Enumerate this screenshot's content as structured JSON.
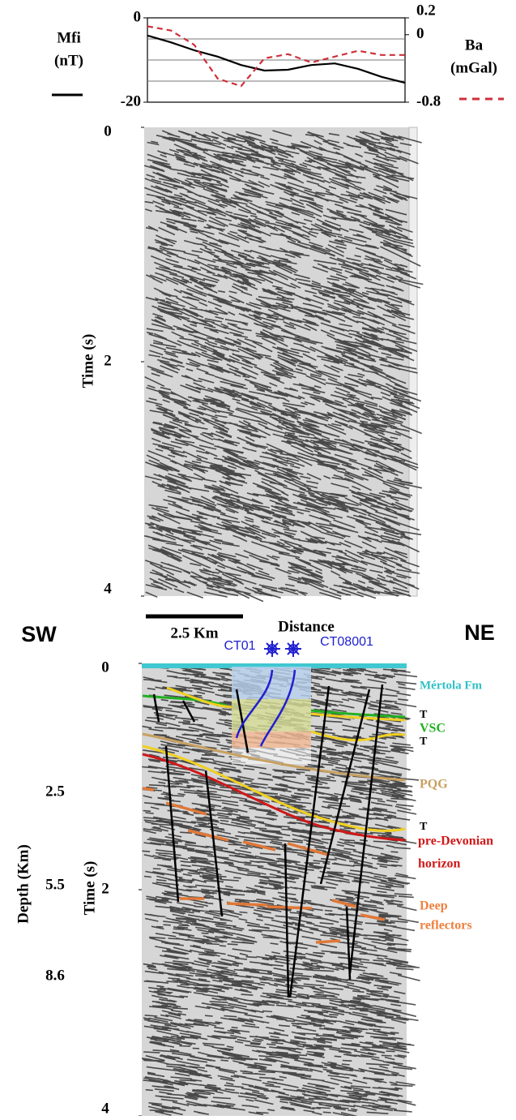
{
  "chart_data": [
    {
      "type": "line",
      "y_label": [
        "Mfi",
        "(nT)"
      ],
      "y2_label": [
        "Ba",
        "(mGal)"
      ],
      "ylim": [
        -20,
        0
      ],
      "yticks": [
        0,
        -20
      ],
      "y2lim": [
        -0.8,
        0.2
      ],
      "y2ticks": [
        0.2,
        0,
        -0.8
      ],
      "grid_lines": [
        -5,
        -10,
        -15
      ],
      "series": [
        {
          "name": "Mfi",
          "color": "#000000",
          "dash": false,
          "values": [
            -4.2,
            -5.8,
            -7.7,
            -9.2,
            -11.2,
            -12.5,
            -12.3,
            -11.2,
            -10.8,
            -12.1,
            -14.0,
            -15.4
          ]
        },
        {
          "name": "Ba",
          "color": "#d0303a",
          "dash": true,
          "axis": "y2",
          "values": [
            0.1,
            0.05,
            -0.12,
            -0.52,
            -0.61,
            -0.28,
            -0.23,
            -0.33,
            -0.26,
            -0.19,
            -0.24,
            -0.24
          ]
        }
      ]
    },
    {
      "type": "seismic",
      "y_label": "Time (s)",
      "ylim": [
        0,
        4
      ],
      "yticks": [
        0,
        2,
        4
      ],
      "interpreted": false
    },
    {
      "type": "seismic",
      "y_label": "Time (s)",
      "ylim": [
        0,
        4
      ],
      "yticks": [
        0,
        2,
        4
      ],
      "interpreted": true
    }
  ],
  "figure": {
    "scale_bar": "2.5 Km",
    "x_label": "Distance",
    "left_dir": "SW",
    "right_dir": "NE",
    "depth_label": "Depth (Km)",
    "depth_ticks": [
      "2.5",
      "5.5",
      "8.6"
    ],
    "wells": [
      "CT01",
      "CT08001"
    ],
    "units": [
      "Mértola Fm",
      "T",
      "VSC",
      "T",
      "PQG",
      "T",
      "pre-Devonian",
      "horizon",
      "Deep",
      "reflectors"
    ]
  }
}
